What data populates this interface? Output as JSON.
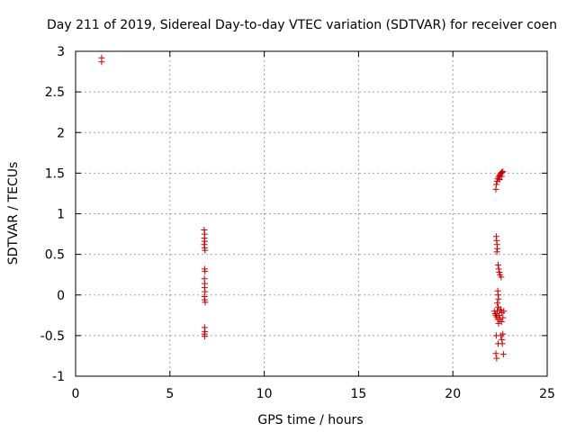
{
  "chart_data": {
    "type": "scatter",
    "title": "Day 211 of 2019, Sidereal Day-to-day VTEC variation (SDTVAR) for receiver coen",
    "xlabel": "GPS time / hours",
    "ylabel": "SDTVAR / TECUs",
    "xlim": [
      0,
      25
    ],
    "ylim": [
      -1,
      3
    ],
    "xticks": [
      0,
      5,
      10,
      15,
      20,
      25
    ],
    "yticks": [
      -1,
      -0.5,
      0,
      0.5,
      1,
      1.5,
      2,
      2.5,
      3
    ],
    "xtick_labels": [
      "0",
      "5",
      "10",
      "15",
      "20",
      "25"
    ],
    "ytick_labels": [
      "-1",
      "-0.5",
      "0",
      "0.5",
      "1",
      "1.5",
      "2",
      "2.5",
      "3"
    ],
    "grid": true,
    "marker": "+",
    "color": "#cc0000",
    "series": [
      {
        "points": [
          [
            1.38,
            2.92
          ],
          [
            1.38,
            2.87
          ],
          [
            6.82,
            0.8
          ],
          [
            6.84,
            0.75
          ],
          [
            6.83,
            0.7
          ],
          [
            6.85,
            0.66
          ],
          [
            6.82,
            0.62
          ],
          [
            6.84,
            0.58
          ],
          [
            6.86,
            0.55
          ],
          [
            6.84,
            0.32
          ],
          [
            6.86,
            0.29
          ],
          [
            6.83,
            0.2
          ],
          [
            6.85,
            0.14
          ],
          [
            6.84,
            0.09
          ],
          [
            6.86,
            0.04
          ],
          [
            6.83,
            -0.02
          ],
          [
            6.85,
            -0.06
          ],
          [
            6.87,
            -0.09
          ],
          [
            6.84,
            -0.4
          ],
          [
            6.86,
            -0.45
          ],
          [
            6.83,
            -0.48
          ],
          [
            6.85,
            -0.51
          ],
          [
            22.28,
            1.3
          ],
          [
            22.3,
            1.36
          ],
          [
            22.34,
            1.4
          ],
          [
            22.38,
            1.43
          ],
          [
            22.42,
            1.45
          ],
          [
            22.46,
            1.47
          ],
          [
            22.5,
            1.48
          ],
          [
            22.55,
            1.5
          ],
          [
            22.6,
            1.51
          ],
          [
            22.65,
            1.52
          ],
          [
            22.48,
            1.42
          ],
          [
            22.58,
            1.46
          ],
          [
            22.3,
            0.72
          ],
          [
            22.32,
            0.67
          ],
          [
            22.34,
            0.62
          ],
          [
            22.36,
            0.57
          ],
          [
            22.33,
            0.53
          ],
          [
            22.4,
            0.37
          ],
          [
            22.43,
            0.32
          ],
          [
            22.46,
            0.28
          ],
          [
            22.5,
            0.25
          ],
          [
            22.56,
            0.22
          ],
          [
            22.38,
            0.05
          ],
          [
            22.4,
            0.0
          ],
          [
            22.42,
            -0.05
          ],
          [
            22.36,
            -0.1
          ],
          [
            22.2,
            -0.2
          ],
          [
            22.25,
            -0.23
          ],
          [
            22.28,
            -0.25
          ],
          [
            22.32,
            -0.27
          ],
          [
            22.35,
            -0.2
          ],
          [
            22.4,
            -0.15
          ],
          [
            22.45,
            -0.25
          ],
          [
            22.5,
            -0.3
          ],
          [
            22.55,
            -0.18
          ],
          [
            22.6,
            -0.22
          ],
          [
            22.65,
            -0.28
          ],
          [
            22.7,
            -0.2
          ],
          [
            22.42,
            -0.35
          ],
          [
            22.38,
            -0.3
          ],
          [
            22.48,
            -0.18
          ],
          [
            22.58,
            -0.33
          ],
          [
            22.3,
            -0.5
          ],
          [
            22.55,
            -0.5
          ],
          [
            22.6,
            -0.55
          ],
          [
            22.62,
            -0.6
          ],
          [
            22.65,
            -0.48
          ],
          [
            22.4,
            -0.6
          ],
          [
            22.28,
            -0.72
          ],
          [
            22.32,
            -0.78
          ],
          [
            22.68,
            -0.73
          ]
        ]
      }
    ]
  }
}
